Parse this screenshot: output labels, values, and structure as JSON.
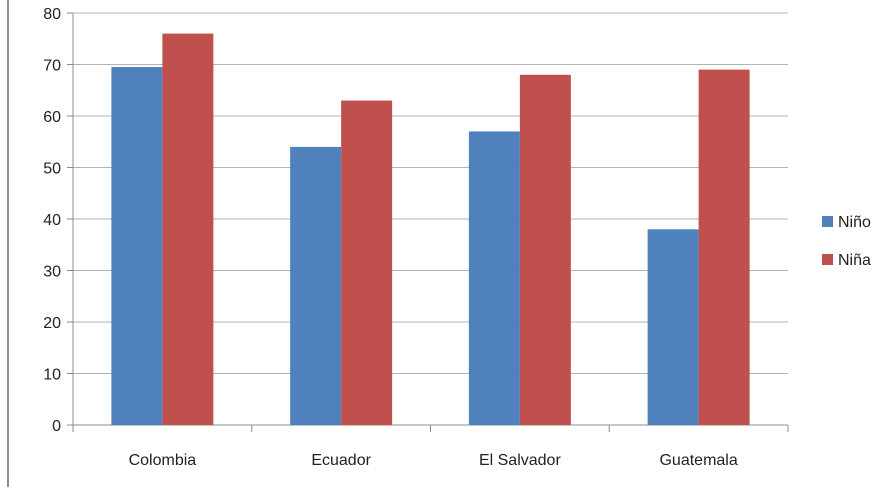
{
  "chart_data": {
    "type": "bar",
    "title": "",
    "xlabel": "",
    "ylabel": "",
    "categories": [
      "Colombia",
      "Ecuador",
      "El Salvador",
      "Guatemala"
    ],
    "series": [
      {
        "name": "Niño",
        "color": "#4f81bd",
        "values": [
          69.5,
          54,
          57,
          38
        ]
      },
      {
        "name": "Niña",
        "color": "#c0504d",
        "values": [
          76,
          63,
          68,
          69
        ]
      }
    ],
    "ylim": [
      0,
      80
    ],
    "yticks": [
      0,
      10,
      20,
      30,
      40,
      50,
      60,
      70,
      80
    ],
    "grid": true,
    "legend_position": "right"
  }
}
